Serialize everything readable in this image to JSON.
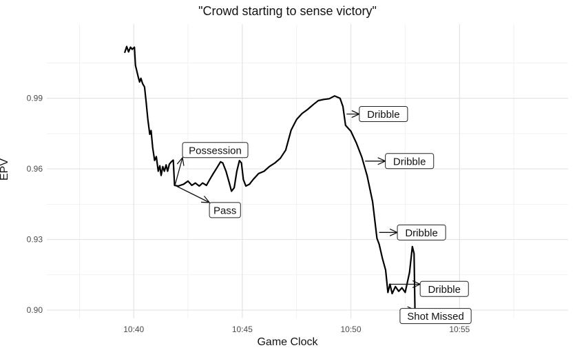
{
  "chart_data": {
    "type": "line",
    "title": "\"Crowd starting to sense victory\"",
    "xlabel": "Game Clock",
    "ylabel": "EPV",
    "x_unit": "minutes",
    "xlim": [
      10.6,
      11.0
    ],
    "ylim": [
      0.8965,
      1.0215
    ],
    "x_ticks": [
      {
        "value": 10.6667,
        "label": "10:40"
      },
      {
        "value": 10.75,
        "label": "10:45"
      },
      {
        "value": 10.8333,
        "label": "10:50"
      },
      {
        "value": 10.9167,
        "label": "10:55"
      }
    ],
    "y_ticks": [
      {
        "value": 0.9,
        "label": "0.90"
      },
      {
        "value": 0.93,
        "label": "0.93"
      },
      {
        "value": 0.96,
        "label": "0.96"
      },
      {
        "value": 0.99,
        "label": "0.99"
      }
    ],
    "grid": true,
    "series": [
      {
        "values": [
          [
            10.6597,
            1.0093
          ],
          [
            10.6613,
            1.012
          ],
          [
            10.6627,
            1.0097
          ],
          [
            10.6642,
            1.0117
          ],
          [
            10.6655,
            1.0108
          ],
          [
            10.6672,
            1.0117
          ],
          [
            10.668,
            1.004
          ],
          [
            10.67,
            0.9993
          ],
          [
            10.6712,
            0.9969
          ],
          [
            10.6722,
            0.9985
          ],
          [
            10.6735,
            0.9962
          ],
          [
            10.675,
            0.9948
          ],
          [
            10.6762,
            0.9885
          ],
          [
            10.6775,
            0.981
          ],
          [
            10.679,
            0.9747
          ],
          [
            10.68,
            0.9763
          ],
          [
            10.6812,
            0.9691
          ],
          [
            10.6827,
            0.9636
          ],
          [
            10.684,
            0.9652
          ],
          [
            10.6855,
            0.959
          ],
          [
            10.6867,
            0.9613
          ],
          [
            10.6877,
            0.9572
          ],
          [
            10.689,
            0.961
          ],
          [
            10.6902,
            0.959
          ],
          [
            10.6915,
            0.9617
          ],
          [
            10.6927,
            0.959
          ],
          [
            10.694,
            0.962
          ],
          [
            10.6955,
            0.963
          ],
          [
            10.697,
            0.9637
          ],
          [
            10.698,
            0.953
          ],
          [
            10.7008,
            0.9527
          ],
          [
            10.705,
            0.9535
          ],
          [
            10.7083,
            0.9548
          ],
          [
            10.7113,
            0.953
          ],
          [
            10.714,
            0.954
          ],
          [
            10.717,
            0.9527
          ],
          [
            10.7195,
            0.954
          ],
          [
            10.7225,
            0.953
          ],
          [
            10.725,
            0.9555
          ],
          [
            10.7275,
            0.9578
          ],
          [
            10.7305,
            0.9605
          ],
          [
            10.7333,
            0.963
          ],
          [
            10.735,
            0.9625
          ],
          [
            10.7375,
            0.959
          ],
          [
            10.74,
            0.954
          ],
          [
            10.7417,
            0.9505
          ],
          [
            10.7438,
            0.952
          ],
          [
            10.7458,
            0.959
          ],
          [
            10.7478,
            0.9635
          ],
          [
            10.7493,
            0.9625
          ],
          [
            10.7508,
            0.9555
          ],
          [
            10.7527,
            0.9527
          ],
          [
            10.7555,
            0.9535
          ],
          [
            10.7583,
            0.9555
          ],
          [
            10.7625,
            0.958
          ],
          [
            10.7667,
            0.959
          ],
          [
            10.7708,
            0.961
          ],
          [
            10.775,
            0.9625
          ],
          [
            10.7792,
            0.9645
          ],
          [
            10.7833,
            0.968
          ],
          [
            10.7875,
            0.9765
          ],
          [
            10.7917,
            0.981
          ],
          [
            10.7958,
            0.9835
          ],
          [
            10.8,
            0.9852
          ],
          [
            10.8042,
            0.9872
          ],
          [
            10.8083,
            0.989
          ],
          [
            10.8125,
            0.9895
          ],
          [
            10.8167,
            0.9898
          ],
          [
            10.8208,
            0.991
          ],
          [
            10.825,
            0.99
          ],
          [
            10.8272,
            0.9865
          ],
          [
            10.8292,
            0.9785
          ],
          [
            10.8333,
            0.976
          ],
          [
            10.8375,
            0.971
          ],
          [
            10.8417,
            0.965
          ],
          [
            10.8458,
            0.957
          ],
          [
            10.85,
            0.946
          ],
          [
            10.8533,
            0.9305
          ],
          [
            10.855,
            0.928
          ],
          [
            10.8575,
            0.922
          ],
          [
            10.86,
            0.917
          ],
          [
            10.8617,
            0.9075
          ],
          [
            10.8633,
            0.911
          ],
          [
            10.865,
            0.907
          ],
          [
            10.8675,
            0.91
          ],
          [
            10.87,
            0.908
          ],
          [
            10.8725,
            0.9095
          ],
          [
            10.875,
            0.9075
          ],
          [
            10.8783,
            0.916
          ],
          [
            10.8805,
            0.927
          ],
          [
            10.8818,
            0.924
          ],
          [
            10.8825,
            0.9
          ]
        ]
      }
    ],
    "annotations": [
      {
        "text": "Possession",
        "point": [
          10.6983,
          0.953
        ],
        "box": [
          10.7292,
          0.968
        ]
      },
      {
        "text": "Pass",
        "point": [
          10.6983,
          0.953
        ],
        "box": [
          10.7367,
          0.9425
        ]
      },
      {
        "text": "Dribble",
        "point": [
          10.83,
          0.9833
        ],
        "box": [
          10.8583,
          0.9833
        ]
      },
      {
        "text": "Dribble",
        "point": [
          10.8442,
          0.9633
        ],
        "box": [
          10.8783,
          0.9633
        ]
      },
      {
        "text": "Dribble",
        "point": [
          10.855,
          0.933
        ],
        "box": [
          10.8875,
          0.933
        ]
      },
      {
        "text": "Dribble",
        "point": [
          10.8625,
          0.911
        ],
        "box": [
          10.905,
          0.909
        ]
      },
      {
        "text": "Shot Missed",
        "point": [
          10.8825,
          0.9
        ],
        "box": [
          10.8983,
          0.8975
        ]
      }
    ]
  }
}
